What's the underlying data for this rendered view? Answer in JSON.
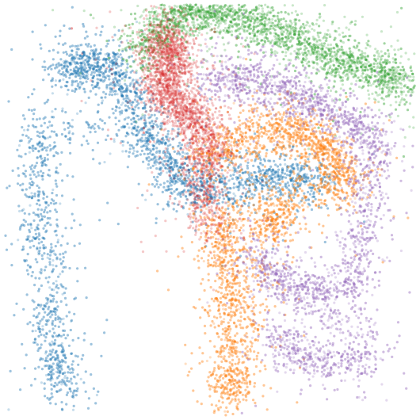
{
  "chart_data": {
    "type": "scatter",
    "title": "",
    "xlabel": "",
    "ylabel": "",
    "xlim": [
      0,
      1
    ],
    "ylim": [
      0,
      1
    ],
    "grid": false,
    "legend": "none",
    "axes_visible": false,
    "point_alpha": 0.25,
    "series": [
      {
        "color": "#1f77b4",
        "count": 5200,
        "description_points": [
          [
            0.14,
            0.84
          ],
          [
            0.2,
            0.86
          ],
          [
            0.26,
            0.84
          ],
          [
            0.32,
            0.74
          ],
          [
            0.38,
            0.64
          ],
          [
            0.45,
            0.55
          ],
          [
            0.56,
            0.56
          ],
          [
            0.68,
            0.58
          ],
          [
            0.78,
            0.56
          ],
          [
            0.1,
            0.72
          ],
          [
            0.08,
            0.55
          ],
          [
            0.1,
            0.35
          ],
          [
            0.12,
            0.15
          ],
          [
            0.15,
            0.05
          ]
        ]
      },
      {
        "color": "#ff7f0e",
        "count": 4800,
        "description_points": [
          [
            0.48,
            0.62
          ],
          [
            0.58,
            0.68
          ],
          [
            0.68,
            0.7
          ],
          [
            0.76,
            0.68
          ],
          [
            0.8,
            0.62
          ],
          [
            0.84,
            0.56
          ],
          [
            0.52,
            0.48
          ],
          [
            0.54,
            0.38
          ],
          [
            0.55,
            0.25
          ],
          [
            0.55,
            0.12
          ],
          [
            0.55,
            0.03
          ],
          [
            0.64,
            0.45
          ],
          [
            0.68,
            0.5
          ]
        ]
      },
      {
        "color": "#2ca02c",
        "count": 3400,
        "description_points": [
          [
            0.32,
            0.88
          ],
          [
            0.4,
            0.97
          ],
          [
            0.48,
            0.99
          ],
          [
            0.58,
            0.97
          ],
          [
            0.7,
            0.92
          ],
          [
            0.8,
            0.87
          ],
          [
            0.9,
            0.84
          ],
          [
            0.98,
            0.8
          ]
        ]
      },
      {
        "color": "#d62728",
        "count": 2600,
        "description_points": [
          [
            0.36,
            0.88
          ],
          [
            0.4,
            0.92
          ],
          [
            0.42,
            0.86
          ],
          [
            0.38,
            0.8
          ],
          [
            0.42,
            0.76
          ],
          [
            0.46,
            0.72
          ],
          [
            0.5,
            0.68
          ],
          [
            0.48,
            0.58
          ],
          [
            0.5,
            0.45
          ]
        ]
      },
      {
        "color": "#9467bd",
        "count": 4200,
        "description_points": [
          [
            0.5,
            0.82
          ],
          [
            0.6,
            0.82
          ],
          [
            0.7,
            0.78
          ],
          [
            0.8,
            0.74
          ],
          [
            0.9,
            0.68
          ],
          [
            0.88,
            0.5
          ],
          [
            0.85,
            0.3
          ],
          [
            0.7,
            0.3
          ],
          [
            0.6,
            0.4
          ],
          [
            0.9,
            0.15
          ],
          [
            0.75,
            0.12
          ],
          [
            0.65,
            0.2
          ]
        ]
      }
    ]
  }
}
